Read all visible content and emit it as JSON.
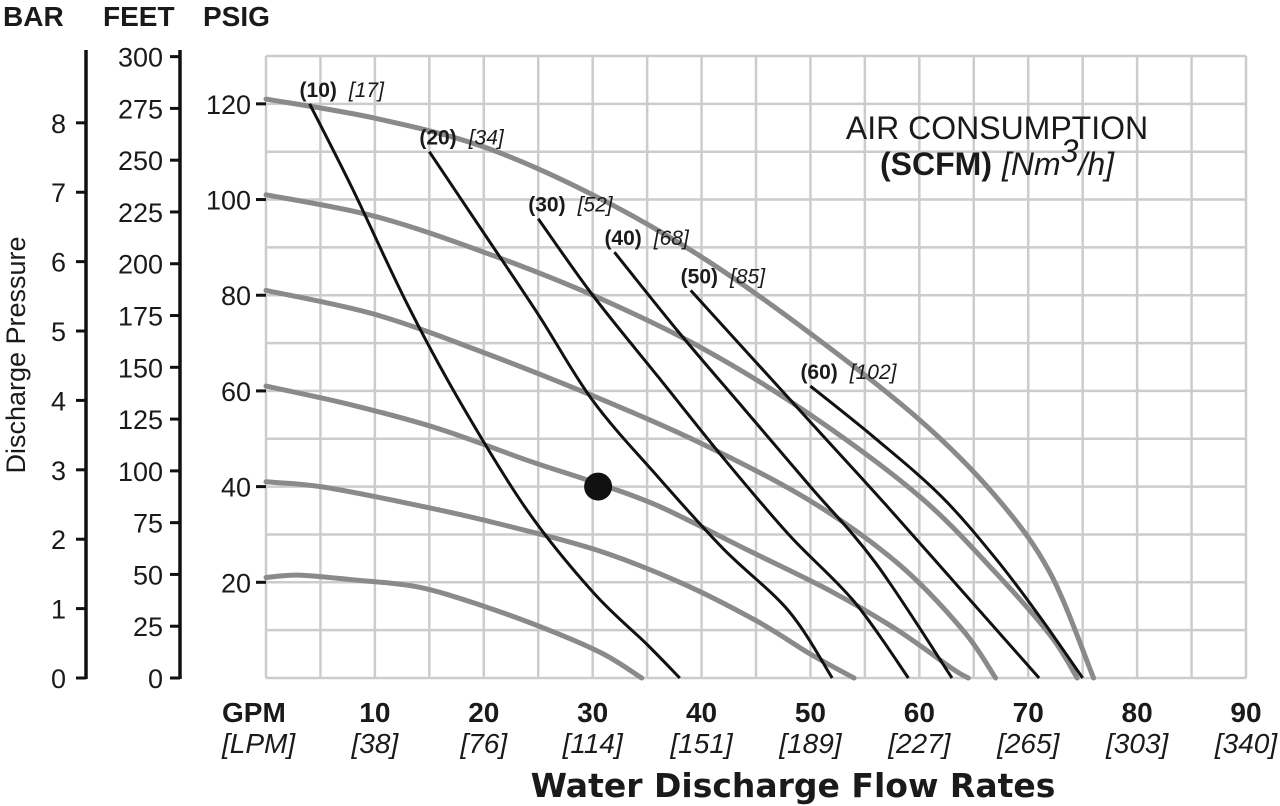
{
  "chart_data": {
    "type": "line",
    "headers": {
      "bar": "BAR",
      "feet": "FEET",
      "psig": "PSIG"
    },
    "title_line1": "AIR CONSUMPTION",
    "title_line2_bold": "(SCFM)",
    "title_line2_italic_pre": "[Nm",
    "title_line2_sup": "3",
    "title_line2_italic_post": "/h]",
    "xlabel": "Water Discharge Flow Rates",
    "ylabel": "Discharge Pressure",
    "x_unit_primary": "GPM",
    "x_unit_secondary": "[LPM]",
    "xlim": [
      0,
      90
    ],
    "ylim_psig": [
      0,
      130
    ],
    "grid": true,
    "x_ticks": [
      {
        "gpm": "10",
        "lpm": "[38]"
      },
      {
        "gpm": "20",
        "lpm": "[76]"
      },
      {
        "gpm": "30",
        "lpm": "[114]"
      },
      {
        "gpm": "40",
        "lpm": "[151]"
      },
      {
        "gpm": "50",
        "lpm": "[189]"
      },
      {
        "gpm": "60",
        "lpm": "[227]"
      },
      {
        "gpm": "70",
        "lpm": "[265]"
      },
      {
        "gpm": "80",
        "lpm": "[303]"
      },
      {
        "gpm": "90",
        "lpm": "[340]"
      }
    ],
    "psig_ticks": [
      "20",
      "40",
      "60",
      "80",
      "100",
      "120"
    ],
    "feet_ticks": [
      "0",
      "25",
      "50",
      "75",
      "100",
      "125",
      "150",
      "175",
      "200",
      "225",
      "250",
      "275",
      "300"
    ],
    "bar_ticks": [
      "0",
      "1",
      "2",
      "3",
      "4",
      "5",
      "6",
      "7",
      "8"
    ],
    "air_inlet_curves": [
      {
        "points": [
          [
            0,
            21
          ],
          [
            3,
            21.5
          ],
          [
            8,
            20.5
          ],
          [
            14,
            19
          ],
          [
            20,
            15
          ],
          [
            26,
            10
          ],
          [
            31,
            5
          ],
          [
            34.5,
            0
          ]
        ]
      },
      {
        "points": [
          [
            0,
            41
          ],
          [
            5,
            40
          ],
          [
            12,
            37
          ],
          [
            20,
            33
          ],
          [
            30,
            27
          ],
          [
            38,
            20
          ],
          [
            45,
            12
          ],
          [
            50,
            5
          ],
          [
            54,
            0
          ]
        ]
      },
      {
        "points": [
          [
            0,
            61
          ],
          [
            8,
            57
          ],
          [
            16,
            52
          ],
          [
            24,
            45.5
          ],
          [
            30,
            41
          ],
          [
            36,
            36
          ],
          [
            44,
            27
          ],
          [
            52,
            18
          ],
          [
            58,
            10
          ],
          [
            63,
            2
          ],
          [
            64.5,
            0
          ]
        ]
      },
      {
        "points": [
          [
            0,
            81
          ],
          [
            10,
            76
          ],
          [
            20,
            68
          ],
          [
            30,
            59
          ],
          [
            40,
            49
          ],
          [
            50,
            37
          ],
          [
            58,
            24
          ],
          [
            64,
            10
          ],
          [
            67,
            0
          ]
        ]
      },
      {
        "points": [
          [
            0,
            101
          ],
          [
            10,
            96.5
          ],
          [
            20,
            89
          ],
          [
            30,
            80
          ],
          [
            40,
            69
          ],
          [
            50,
            55
          ],
          [
            60,
            38
          ],
          [
            67,
            22
          ],
          [
            72,
            9
          ],
          [
            74.5,
            0
          ]
        ]
      },
      {
        "points": [
          [
            0,
            121
          ],
          [
            10,
            117
          ],
          [
            20,
            111
          ],
          [
            30,
            101
          ],
          [
            40,
            88
          ],
          [
            50,
            72
          ],
          [
            60,
            54
          ],
          [
            67,
            38
          ],
          [
            72,
            22
          ],
          [
            76,
            0
          ]
        ]
      }
    ],
    "scfm_curves": [
      {
        "scfm": "(10)",
        "nm3h": "[17]",
        "points": [
          [
            4,
            120
          ],
          [
            8,
            102
          ],
          [
            13,
            78
          ],
          [
            18,
            57
          ],
          [
            24,
            35
          ],
          [
            30,
            18
          ],
          [
            35,
            7
          ],
          [
            38,
            0
          ]
        ]
      },
      {
        "scfm": "(20)",
        "nm3h": "[34]",
        "points": [
          [
            15,
            110
          ],
          [
            20,
            93
          ],
          [
            25,
            76
          ],
          [
            30,
            58
          ],
          [
            36,
            42
          ],
          [
            42,
            27
          ],
          [
            48,
            14
          ],
          [
            52,
            0
          ]
        ]
      },
      {
        "scfm": "(30)",
        "nm3h": "[52]",
        "points": [
          [
            25,
            96
          ],
          [
            30,
            80
          ],
          [
            36,
            63
          ],
          [
            42,
            46
          ],
          [
            48,
            30
          ],
          [
            54,
            16
          ],
          [
            59,
            0
          ]
        ]
      },
      {
        "scfm": "(40)",
        "nm3h": "[68]",
        "points": [
          [
            32,
            89
          ],
          [
            38,
            72
          ],
          [
            44,
            56
          ],
          [
            50,
            40
          ],
          [
            56,
            24
          ],
          [
            63,
            0
          ]
        ]
      },
      {
        "scfm": "(50)",
        "nm3h": "[85]",
        "points": [
          [
            39,
            81
          ],
          [
            45,
            66
          ],
          [
            51,
            51
          ],
          [
            57,
            36
          ],
          [
            64,
            18
          ],
          [
            71,
            0
          ]
        ]
      },
      {
        "scfm": "(60)",
        "nm3h": "[102]",
        "points": [
          [
            50,
            61
          ],
          [
            56,
            50
          ],
          [
            62,
            38
          ],
          [
            67,
            25
          ],
          [
            71,
            13
          ],
          [
            75,
            0
          ]
        ]
      }
    ],
    "marker": {
      "x": 30.5,
      "y": 40
    },
    "colors": {
      "grid": "#cccccc",
      "inlet": "#8a8a8a",
      "scfm": "#111111",
      "text": "#1a1a1a"
    }
  }
}
